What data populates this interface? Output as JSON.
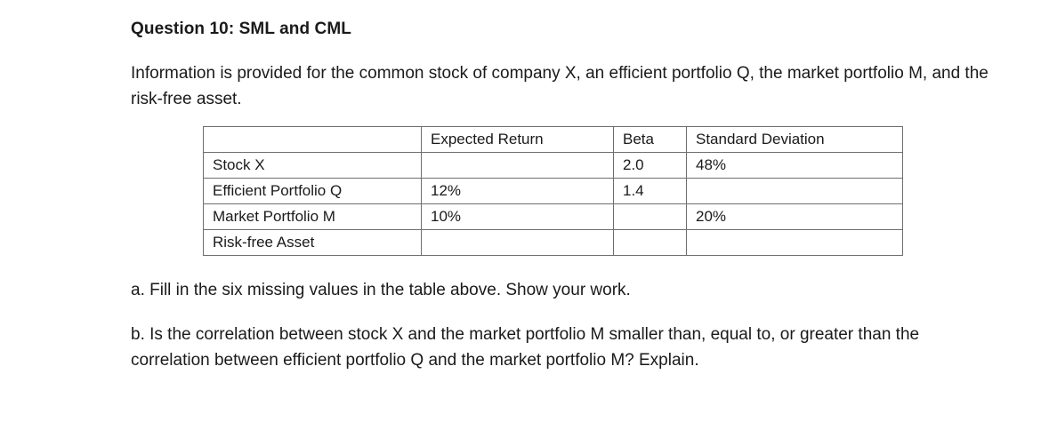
{
  "question": {
    "title": "Question 10: SML and CML",
    "intro": "Information is provided for the common stock of company X, an efficient portfolio Q, the market portfolio M, and the risk-free asset."
  },
  "table": {
    "headers": [
      "",
      "Expected Return",
      "Beta",
      "Standard Deviation"
    ],
    "rows": [
      [
        "Stock X",
        "",
        "2.0",
        "48%"
      ],
      [
        "Efficient Portfolio Q",
        "12%",
        "1.4",
        ""
      ],
      [
        "Market Portfolio M",
        "10%",
        "",
        "20%"
      ],
      [
        "Risk-free Asset",
        "",
        "",
        ""
      ]
    ]
  },
  "parts": {
    "a": "a. Fill in the six missing values in the table above. Show your work.",
    "b": "b. Is the correlation between stock X and the market portfolio M smaller than, equal to, or greater than the correlation between efficient portfolio Q and the market portfolio M? Explain."
  }
}
